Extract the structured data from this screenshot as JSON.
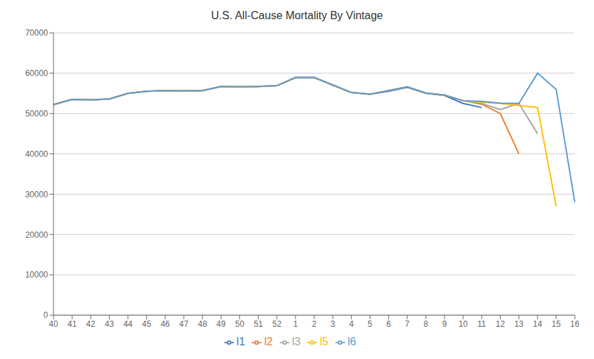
{
  "chart_data": {
    "type": "line",
    "title": "U.S. All-Cause Mortality By Vintage",
    "categories": [
      "40",
      "41",
      "42",
      "43",
      "44",
      "45",
      "46",
      "47",
      "48",
      "49",
      "50",
      "51",
      "52",
      "1",
      "2",
      "3",
      "4",
      "5",
      "6",
      "7",
      "8",
      "9",
      "10",
      "11",
      "12",
      "13",
      "14",
      "15",
      "16"
    ],
    "series": [
      {
        "name": "l1",
        "color": "#4472C4",
        "values": [
          52200,
          53500,
          53400,
          53600,
          55000,
          55500,
          55700,
          55600,
          55700,
          56700,
          56600,
          56700,
          56900,
          59000,
          59000,
          57000,
          55200,
          54800,
          55500,
          56500,
          55000,
          54500,
          52500,
          51500,
          null,
          null,
          null,
          null,
          null
        ]
      },
      {
        "name": "l2",
        "color": "#ED7D31",
        "values": [
          52200,
          53500,
          53400,
          53600,
          55000,
          55500,
          55700,
          55600,
          55700,
          56700,
          56600,
          56700,
          56900,
          58900,
          58900,
          57100,
          55200,
          54800,
          55700,
          56600,
          55100,
          54600,
          53200,
          52300,
          50000,
          40000,
          null,
          null,
          null
        ]
      },
      {
        "name": "l3",
        "color": "#A5A5A5",
        "values": [
          52200,
          53500,
          53400,
          53600,
          55000,
          55500,
          55700,
          55600,
          55700,
          56700,
          56600,
          56700,
          56900,
          58900,
          58900,
          57100,
          55200,
          54800,
          55700,
          56600,
          55100,
          54600,
          53200,
          52500,
          51000,
          52500,
          45000,
          null,
          null
        ]
      },
      {
        "name": "l5",
        "color": "#FFC000",
        "values": [
          52200,
          53500,
          53400,
          53600,
          55000,
          55500,
          55700,
          55600,
          55700,
          56700,
          56600,
          56700,
          56900,
          58900,
          58900,
          57100,
          55200,
          54800,
          55700,
          56600,
          55100,
          54600,
          53200,
          52800,
          52500,
          52000,
          51500,
          27000,
          null
        ]
      },
      {
        "name": "l6",
        "color": "#5B9BD5",
        "values": [
          52200,
          53500,
          53400,
          53600,
          55000,
          55500,
          55700,
          55600,
          55700,
          56700,
          56600,
          56700,
          56900,
          58900,
          58900,
          57100,
          55200,
          54800,
          55700,
          56600,
          55100,
          54600,
          53200,
          53000,
          52600,
          52500,
          60000,
          56000,
          28000
        ]
      }
    ],
    "ylim": [
      0,
      70000
    ],
    "yticks": [
      0,
      10000,
      20000,
      30000,
      40000,
      50000,
      60000,
      70000
    ],
    "grid": true,
    "legend": "bottom"
  }
}
